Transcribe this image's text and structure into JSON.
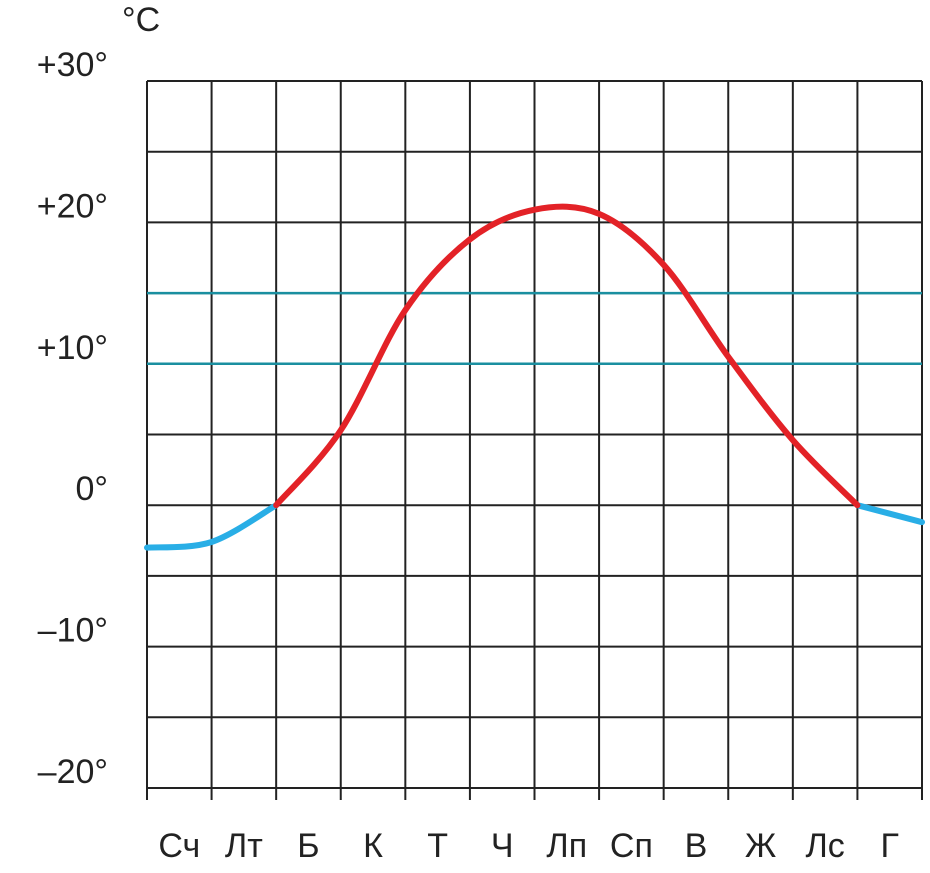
{
  "chart_data": {
    "type": "line",
    "unit": "°C",
    "x": [
      0,
      1,
      2,
      3,
      4,
      5,
      6,
      7,
      8,
      9,
      10,
      11,
      12
    ],
    "xlim": [
      0,
      12
    ],
    "xticks": [
      {
        "value": 0.5,
        "label": "Сч"
      },
      {
        "value": 1.5,
        "label": "Лт"
      },
      {
        "value": 2.5,
        "label": "Б"
      },
      {
        "value": 3.5,
        "label": "К"
      },
      {
        "value": 4.5,
        "label": "Т"
      },
      {
        "value": 5.5,
        "label": "Ч"
      },
      {
        "value": 6.5,
        "label": "Лп"
      },
      {
        "value": 7.5,
        "label": "Сп"
      },
      {
        "value": 8.5,
        "label": "В"
      },
      {
        "value": 9.5,
        "label": "Ж"
      },
      {
        "value": 10.5,
        "label": "Лс"
      },
      {
        "value": 11.5,
        "label": "Г"
      }
    ],
    "series": [
      {
        "color": "#29aee6",
        "values": [
          -3,
          -2.6,
          0,
          null,
          null,
          null,
          null,
          null,
          null,
          null,
          null,
          0,
          -1.2
        ]
      },
      {
        "color": "#e32227",
        "values": [
          null,
          null,
          0,
          5.3,
          13.8,
          18.8,
          20.9,
          20.6,
          17,
          10.5,
          4.6,
          0,
          null
        ]
      }
    ],
    "ylim": [
      -20,
      30
    ],
    "yticks": [
      {
        "value": -20,
        "label": "–20°"
      },
      {
        "value": -10,
        "label": "–10°"
      },
      {
        "value": 0,
        "label": "0°"
      },
      {
        "value": 10,
        "label": "+10°"
      },
      {
        "value": 20,
        "label": "+20°"
      },
      {
        "value": 30,
        "label": "+30°"
      }
    ],
    "reference_lines": [
      {
        "value": 10,
        "color": "#1a8fa0"
      },
      {
        "value": 15,
        "color": "#1a8fa0"
      }
    ],
    "grid": true
  }
}
